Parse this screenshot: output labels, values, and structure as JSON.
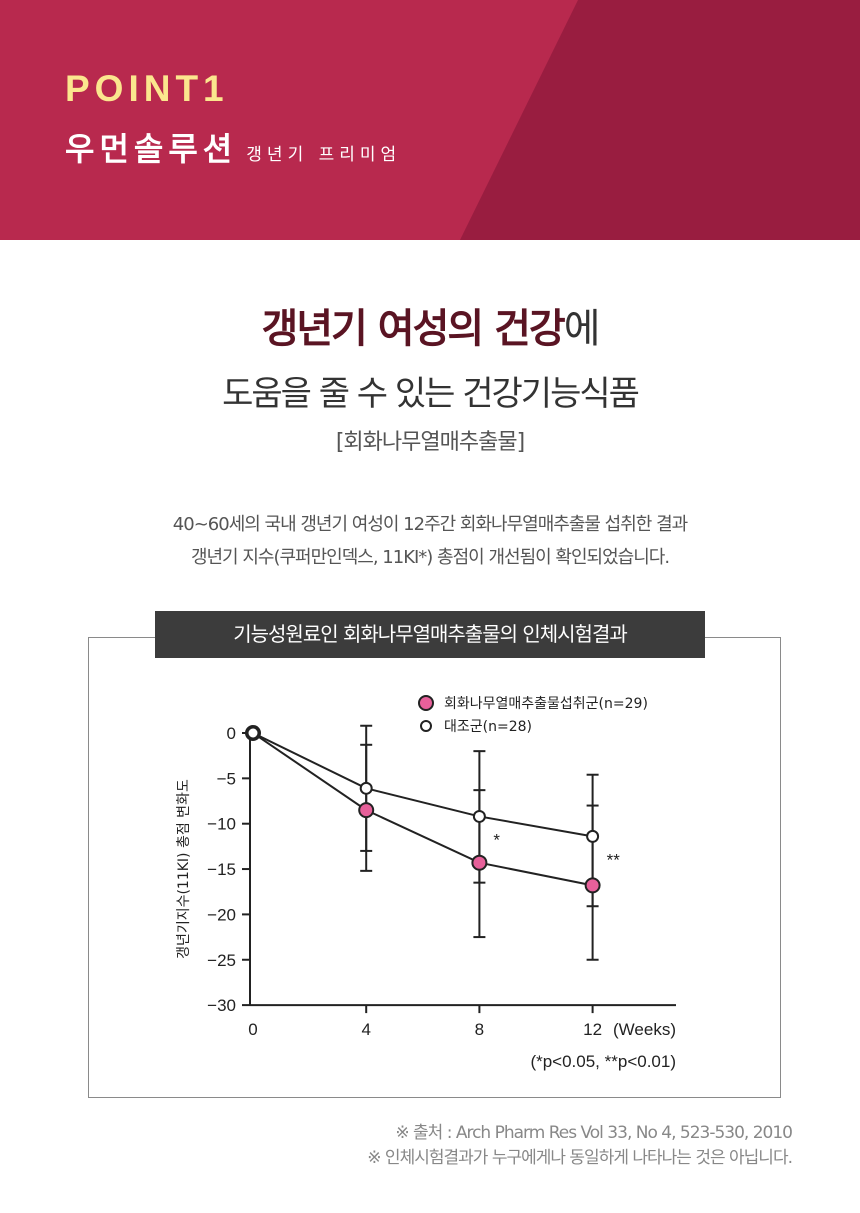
{
  "header": {
    "point_label": "POINT1",
    "brand_name": "우먼솔루션",
    "brand_sub": "갱년기 프리미엄",
    "colors": {
      "primary": "#b8294e",
      "shade": "#991d40",
      "point_text": "#fbe68e"
    }
  },
  "headline": {
    "bold": "갱년기 여성의 건강",
    "suffix": "에",
    "line2": "도움을 줄 수 있는 건강기능식품",
    "ingredient": "[회화나무열매추출물]"
  },
  "description": {
    "line1": "40~60세의 국내 갱년기 여성이 12주간 회화나무열매추출물 섭취한 결과",
    "line2": "갱년기 지수(쿠퍼만인덱스, 11KI*) 총점이 개선됨이 확인되었습니다."
  },
  "chart_title": "기능성원료인 회화나무열매추출물의 인체시험결과",
  "chart_data": {
    "type": "line",
    "x": [
      0,
      4,
      8,
      12
    ],
    "x_tick_labels": [
      "0",
      "4",
      "8",
      "12"
    ],
    "x_unit": "(Weeks)",
    "ylabel": "갱년기지수(11KI) 총점 변화도",
    "ylim": [
      -30,
      0
    ],
    "y_ticks": [
      0,
      -5,
      -10,
      -15,
      -20,
      -25,
      -30
    ],
    "y_tick_labels": [
      "0",
      "−5",
      "−10",
      "−15",
      "−20",
      "−25",
      "−30"
    ],
    "legend_position": "top-right",
    "series": [
      {
        "name": "회화나무열매추출물섭취군(n=29)",
        "color": "#e7609a",
        "marker": "filled-circle",
        "values": [
          0,
          -8.5,
          -14.3,
          -16.8
        ],
        "error_low": [
          0,
          -13,
          -22.5,
          -25
        ],
        "error_high": [
          0,
          -1.3,
          -6.3,
          -8
        ]
      },
      {
        "name": "대조군(n=28)",
        "color": "#ffffff",
        "marker": "open-circle",
        "values": [
          0,
          -6.1,
          -9.2,
          -11.4
        ],
        "error_low": [
          0,
          -15.2,
          -16.5,
          -19.1
        ],
        "error_high": [
          0,
          0.8,
          -2,
          -4.6
        ]
      }
    ],
    "annotations": [
      {
        "x": 8,
        "y": -11.5,
        "text": "*"
      },
      {
        "x": 12,
        "y": -13.7,
        "text": "**"
      }
    ],
    "note": "(*p<0.05, **p<0.01)"
  },
  "source": {
    "line1": "※ 출처 : Arch Pharm Res Vol 33, No 4, 523-530, 2010",
    "line2": "※ 인체시험결과가 누구에게나 동일하게 나타나는 것은 아닙니다."
  }
}
